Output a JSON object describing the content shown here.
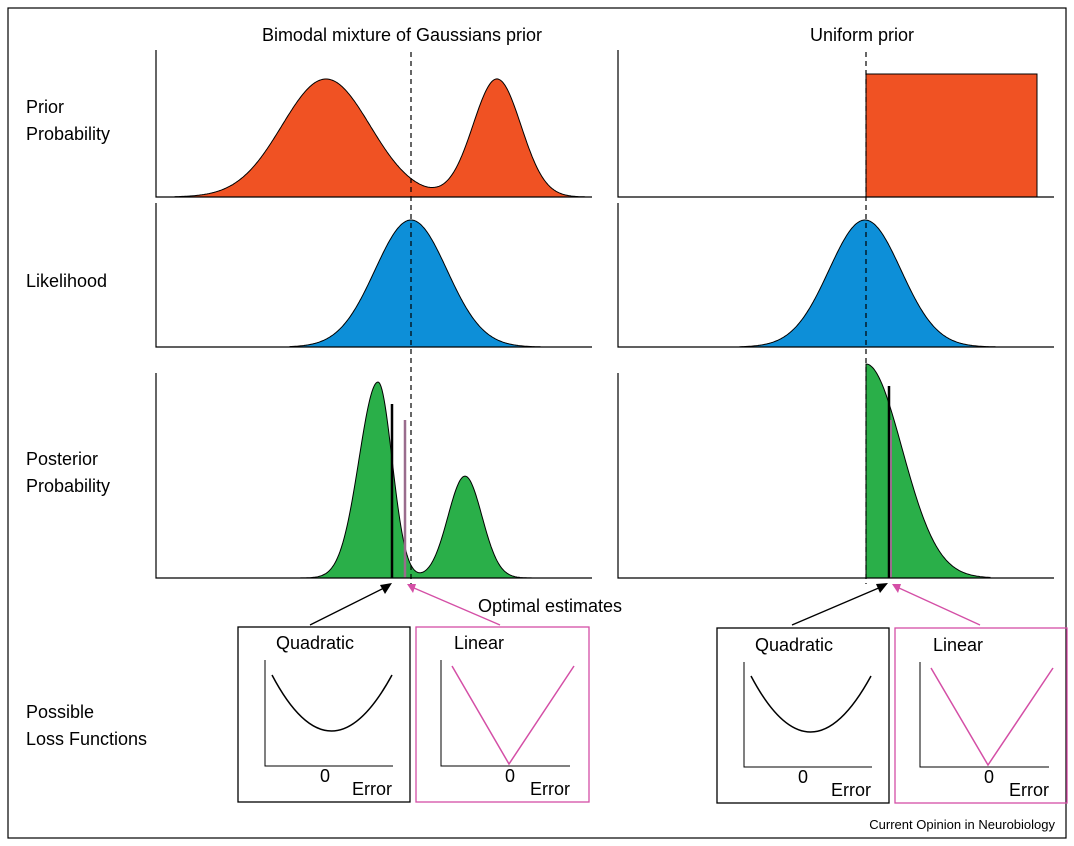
{
  "columns": {
    "left_title": "Bimodal mixture of Gaussians prior",
    "right_title": "Uniform prior"
  },
  "rows": {
    "prior": [
      "Prior",
      "Probability"
    ],
    "likelihood": "Likelihood",
    "posterior": [
      "Posterior",
      "Probability"
    ],
    "loss": [
      "Possible",
      "Loss Functions"
    ]
  },
  "estimates_label": "Optimal estimates",
  "loss_functions": {
    "quadratic_title": "Quadratic",
    "linear_title": "Linear",
    "zero_label": "0",
    "error_label": "Error"
  },
  "credit": "Current Opinion in Neurobiology",
  "colors": {
    "prior_fill": "#f05223",
    "likelihood_fill": "#0d8fd8",
    "posterior_fill": "#2aaf49",
    "linear_box": "#d44fa6",
    "quadratic_box": "#000000",
    "estimate_line_dark": "#000000",
    "estimate_line_pink": "#9a6c8d"
  }
}
